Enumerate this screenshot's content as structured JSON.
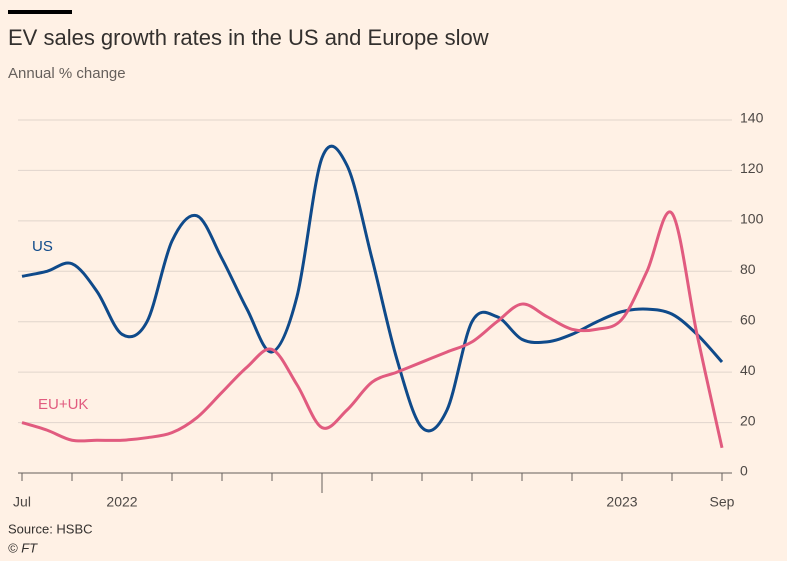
{
  "chart_data": {
    "type": "line",
    "title": "EV sales growth rates in the US and Europe slow",
    "subtitle": "Annual % change",
    "source": "Source: HSBC",
    "credit": "© FT",
    "categories": [
      "Jul",
      null,
      null,
      null,
      "2022",
      null,
      null,
      null,
      null,
      null,
      null,
      null,
      null,
      null,
      null,
      null,
      null,
      null,
      null,
      null,
      null,
      null,
      null,
      null,
      "2023",
      null,
      null,
      null,
      "Sep"
    ],
    "series": [
      {
        "name": "US",
        "color": "#0f4a8a",
        "values": [
          78,
          80,
          83,
          72,
          55,
          60,
          92,
          102,
          85,
          65,
          48,
          70,
          125,
          122,
          85,
          45,
          18,
          25,
          60,
          62,
          53,
          52,
          55,
          60,
          64,
          65,
          63,
          55,
          44
        ]
      },
      {
        "name": "EU+UK",
        "color": "#e15b7f",
        "values": [
          20,
          17,
          13,
          13,
          13,
          14,
          16,
          22,
          32,
          42,
          49,
          35,
          18,
          25,
          36,
          40,
          44,
          48,
          52,
          60,
          67,
          62,
          57,
          57,
          61,
          80,
          103,
          55,
          10
        ]
      }
    ],
    "ylim": [
      0,
      140
    ],
    "yticks": [
      0,
      20,
      40,
      60,
      80,
      100,
      120,
      140
    ],
    "grid": true
  }
}
